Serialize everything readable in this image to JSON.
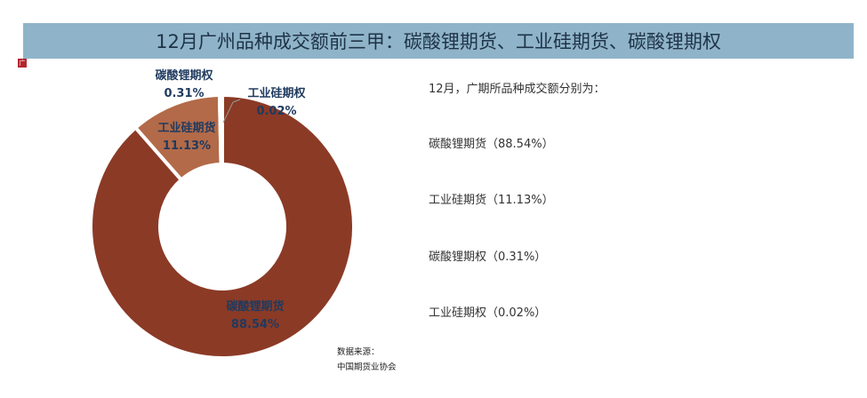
{
  "title": "12月广州品种成交额前三甲：碳酸锂期货、工业硅期货、碳酸锂期权",
  "logo_text": "广州",
  "summary": {
    "intro": "12月，广期所品种成交额分别为：",
    "items": [
      "碳酸锂期货（88.54%）",
      "工业硅期货（11.13%）",
      "碳酸锂期权（0.31%）",
      "工业硅期权（0.02%）"
    ]
  },
  "source": {
    "label": "数据来源：",
    "value": "中国期货业协会"
  },
  "chart_data": {
    "type": "pie",
    "donut": true,
    "title": "",
    "slices": [
      {
        "name": "碳酸锂期货",
        "value": 88.54,
        "label": "88.54%",
        "color": "#8b3a26"
      },
      {
        "name": "工业硅期货",
        "value": 11.13,
        "label": "11.13%",
        "color": "#b36a48"
      },
      {
        "name": "碳酸锂期权",
        "value": 0.31,
        "label": "0.31%",
        "color": "#c58a68"
      },
      {
        "name": "工业硅期权",
        "value": 0.02,
        "label": "0.02%",
        "color": "#d9a88a"
      }
    ]
  }
}
